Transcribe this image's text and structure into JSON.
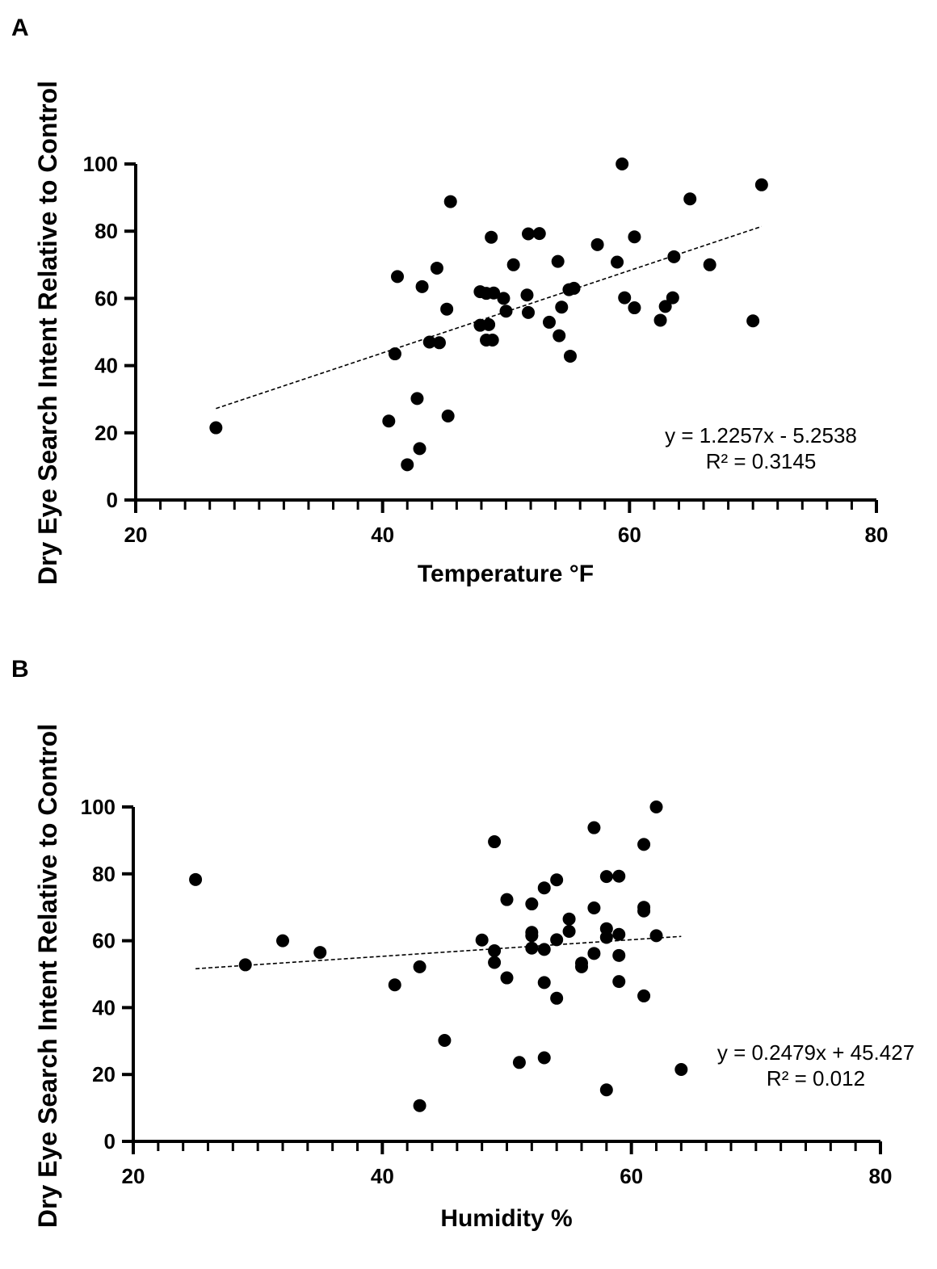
{
  "chart_data": [
    {
      "panel": "A",
      "type": "scatter",
      "xlabel": "Temperature °F",
      "ylabel": "Dry Eye Search Intent Relative to Control",
      "xlim": [
        20,
        80
      ],
      "ylim": [
        0,
        100
      ],
      "xticks": [
        20,
        40,
        60,
        80
      ],
      "yticks": [
        0,
        20,
        40,
        60,
        80,
        100
      ],
      "minor_xtick_step": 2,
      "trendline": {
        "slope": 1.2257,
        "intercept": -5.2538,
        "x_range": [
          26.5,
          70.7
        ],
        "style": "dashed"
      },
      "equation": "y = 1.2257x - 5.2538",
      "r_squared": "R² = 0.3145",
      "points": [
        [
          26.5,
          21.5
        ],
        [
          40.5,
          23.5
        ],
        [
          41.0,
          43.5
        ],
        [
          41.2,
          66.5
        ],
        [
          42.0,
          10.5
        ],
        [
          42.8,
          30.2
        ],
        [
          43.0,
          15.3
        ],
        [
          43.2,
          63.5
        ],
        [
          43.8,
          47.0
        ],
        [
          44.4,
          69.0
        ],
        [
          44.6,
          46.8
        ],
        [
          45.2,
          56.8
        ],
        [
          45.3,
          25.0
        ],
        [
          45.5,
          88.8
        ],
        [
          47.9,
          52.0
        ],
        [
          47.9,
          62.0
        ],
        [
          48.4,
          47.6
        ],
        [
          48.4,
          61.5
        ],
        [
          48.6,
          52.2
        ],
        [
          48.8,
          78.2
        ],
        [
          48.9,
          47.6
        ],
        [
          49.0,
          61.6
        ],
        [
          49.8,
          60.0
        ],
        [
          50.0,
          56.2
        ],
        [
          50.6,
          70.0
        ],
        [
          51.7,
          61.0
        ],
        [
          51.8,
          55.8
        ],
        [
          51.8,
          79.2
        ],
        [
          52.7,
          79.3
        ],
        [
          53.5,
          52.9
        ],
        [
          54.2,
          71.0
        ],
        [
          54.3,
          48.9
        ],
        [
          54.5,
          57.4
        ],
        [
          55.1,
          62.6
        ],
        [
          55.2,
          42.8
        ],
        [
          55.5,
          63.0
        ],
        [
          57.4,
          76.0
        ],
        [
          59.0,
          70.8
        ],
        [
          59.4,
          100.0
        ],
        [
          59.6,
          60.2
        ],
        [
          60.4,
          57.2
        ],
        [
          60.4,
          78.3
        ],
        [
          62.5,
          53.5
        ],
        [
          62.9,
          57.6
        ],
        [
          63.5,
          60.2
        ],
        [
          63.6,
          72.4
        ],
        [
          64.9,
          89.6
        ],
        [
          66.5,
          70.0
        ],
        [
          70.0,
          53.3
        ],
        [
          70.7,
          93.8
        ]
      ]
    },
    {
      "panel": "B",
      "type": "scatter",
      "xlabel": "Humidity %",
      "ylabel": "Dry Eye Search Intent Relative to Control",
      "xlim": [
        20,
        80
      ],
      "ylim": [
        0,
        100
      ],
      "xticks": [
        20,
        40,
        60,
        80
      ],
      "yticks": [
        0,
        20,
        40,
        60,
        80,
        100
      ],
      "minor_xtick_step": 2,
      "trendline": {
        "slope": 0.2479,
        "intercept": 45.427,
        "x_range": [
          25,
          64
        ],
        "style": "dashed"
      },
      "equation": "y = 0.2479x + 45.427",
      "r_squared": "R² = 0.012",
      "points": [
        [
          25,
          78.3
        ],
        [
          29,
          52.8
        ],
        [
          32,
          60.0
        ],
        [
          35,
          56.5
        ],
        [
          41,
          46.8
        ],
        [
          43,
          10.7
        ],
        [
          43,
          52.2
        ],
        [
          45,
          30.2
        ],
        [
          48,
          60.2
        ],
        [
          49,
          89.6
        ],
        [
          49,
          57.0
        ],
        [
          49,
          53.5
        ],
        [
          50,
          72.3
        ],
        [
          50,
          48.9
        ],
        [
          51,
          23.6
        ],
        [
          52,
          71.0
        ],
        [
          52,
          62.5
        ],
        [
          52,
          61.5
        ],
        [
          52,
          57.8
        ],
        [
          53,
          75.8
        ],
        [
          53,
          57.4
        ],
        [
          53,
          47.5
        ],
        [
          53,
          25.0
        ],
        [
          54,
          78.2
        ],
        [
          54,
          60.3
        ],
        [
          54,
          42.8
        ],
        [
          55,
          66.5
        ],
        [
          55,
          62.8
        ],
        [
          56,
          53.3
        ],
        [
          56,
          52.2
        ],
        [
          57,
          93.8
        ],
        [
          57,
          69.8
        ],
        [
          57,
          56.2
        ],
        [
          58,
          79.2
        ],
        [
          58,
          63.6
        ],
        [
          58,
          61.0
        ],
        [
          58,
          15.4
        ],
        [
          59,
          79.3
        ],
        [
          59,
          61.9
        ],
        [
          59,
          55.6
        ],
        [
          59,
          47.8
        ],
        [
          61,
          88.8
        ],
        [
          61,
          70.0
        ],
        [
          61,
          68.9
        ],
        [
          61,
          43.5
        ],
        [
          62,
          100.0
        ],
        [
          62,
          61.5
        ],
        [
          64,
          21.5
        ]
      ]
    }
  ]
}
